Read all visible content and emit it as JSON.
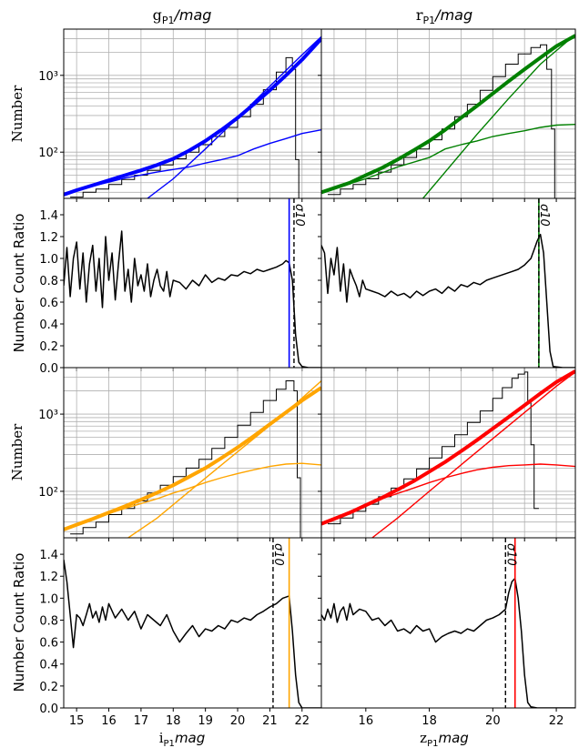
{
  "figure": {
    "col_titles": [
      {
        "prefix": "g",
        "sub": "P1",
        "unit": "/mag"
      },
      {
        "prefix": "r",
        "sub": "P1",
        "unit": "/mag"
      }
    ],
    "x_labels": [
      {
        "prefix": "i",
        "sub": "P1",
        "unit": "mag"
      },
      {
        "prefix": "z",
        "sub": "P1",
        "unit": "mag"
      }
    ],
    "ylabel_counts": "Number",
    "ylabel_ratio": "Number Count Ratio",
    "sigma_label": "σ10"
  },
  "chart_data": [
    {
      "id": "g-counts",
      "type": "line",
      "scale_y": "log",
      "color": "#0000ff",
      "xlim": [
        14.6,
        22.6
      ],
      "ylim": [
        25,
        4000
      ],
      "yticks": [
        {
          "v": 100,
          "label": "10²"
        },
        {
          "v": 1000,
          "label": "10³"
        }
      ],
      "grid": true,
      "series": [
        {
          "role": "steps",
          "x": [
            14.8,
            15.2,
            15.6,
            16,
            16.4,
            16.8,
            17.2,
            17.6,
            18,
            18.4,
            18.8,
            19.2,
            19.6,
            20,
            20.4,
            20.8,
            21.2,
            21.5,
            21.7,
            21.8,
            21.9
          ],
          "y": [
            26,
            30,
            33,
            38,
            44,
            50,
            58,
            68,
            82,
            100,
            125,
            160,
            210,
            290,
            420,
            650,
            1100,
            1700,
            1200,
            80,
            25
          ]
        },
        {
          "role": "model",
          "x": [
            14.6,
            15,
            15.5,
            16,
            16.5,
            17,
            17.5,
            18,
            18.5,
            19,
            19.5,
            20,
            20.5,
            21,
            21.5,
            22,
            22.6
          ],
          "y": [
            28,
            32,
            37,
            43,
            50,
            58,
            68,
            82,
            105,
            140,
            195,
            280,
            420,
            640,
            1000,
            1600,
            3000
          ]
        },
        {
          "role": "bright",
          "x": [
            17.2,
            18,
            19,
            20,
            21,
            22,
            22.6
          ],
          "y": [
            25,
            45,
            110,
            280,
            720,
            1850,
            3200
          ]
        },
        {
          "role": "flat",
          "x": [
            14.6,
            15.5,
            16.5,
            17.5,
            18.5,
            19,
            19.5,
            20,
            20.5,
            21,
            21.5,
            22,
            22.6
          ],
          "y": [
            28,
            36,
            46,
            55,
            64,
            72,
            80,
            90,
            110,
            130,
            150,
            175,
            195
          ]
        }
      ]
    },
    {
      "id": "r-counts",
      "type": "line",
      "scale_y": "log",
      "color": "#008000",
      "xlim": [
        14.6,
        22.6
      ],
      "ylim": [
        25,
        4000
      ],
      "yticks": [
        {
          "v": 100,
          "label": "10²"
        },
        {
          "v": 1000,
          "label": "10³"
        }
      ],
      "grid": true,
      "series": [
        {
          "role": "steps",
          "x": [
            14.8,
            15.2,
            15.6,
            16,
            16.4,
            16.8,
            17.2,
            17.6,
            18,
            18.4,
            18.8,
            19.2,
            19.6,
            20,
            20.4,
            20.8,
            21.2,
            21.5,
            21.7,
            21.85,
            21.95
          ],
          "y": [
            28,
            33,
            38,
            45,
            55,
            68,
            85,
            110,
            145,
            200,
            290,
            420,
            640,
            960,
            1400,
            1900,
            2300,
            2500,
            1200,
            200,
            25
          ]
        },
        {
          "role": "model",
          "x": [
            14.6,
            15,
            15.5,
            16,
            16.5,
            17,
            17.5,
            18,
            18.5,
            19,
            19.5,
            20,
            20.5,
            21,
            21.5,
            22,
            22.6
          ],
          "y": [
            30,
            34,
            40,
            50,
            62,
            80,
            105,
            140,
            195,
            280,
            400,
            580,
            840,
            1200,
            1700,
            2400,
            3300
          ]
        },
        {
          "role": "bright",
          "x": [
            17.8,
            18.5,
            19.5,
            20.5,
            21.5,
            22.6
          ],
          "y": [
            25,
            55,
            170,
            500,
            1400,
            3400
          ]
        },
        {
          "role": "flat",
          "x": [
            14.6,
            16,
            17,
            18,
            18.5,
            19,
            19.5,
            20,
            20.5,
            21,
            21.5,
            22,
            22.6
          ],
          "y": [
            30,
            45,
            64,
            85,
            110,
            125,
            140,
            160,
            175,
            190,
            210,
            225,
            230
          ]
        }
      ]
    },
    {
      "id": "g-ratio",
      "type": "line",
      "color": "#000000",
      "cut_color": "#0000ff",
      "xlim": [
        14.6,
        22.6
      ],
      "ylim": [
        0,
        1.55
      ],
      "yticks": [
        0.0,
        0.2,
        0.4,
        0.6,
        0.8,
        1.0,
        1.2,
        1.4
      ],
      "sigma10": 21.75,
      "cut": 21.6,
      "x": [
        14.6,
        14.7,
        14.8,
        14.9,
        15.0,
        15.1,
        15.2,
        15.3,
        15.4,
        15.5,
        15.6,
        15.7,
        15.8,
        15.9,
        16.0,
        16.1,
        16.2,
        16.3,
        16.4,
        16.5,
        16.6,
        16.7,
        16.8,
        16.9,
        17.0,
        17.1,
        17.2,
        17.3,
        17.4,
        17.5,
        17.6,
        17.7,
        17.8,
        17.9,
        18.0,
        18.2,
        18.4,
        18.6,
        18.8,
        19.0,
        19.2,
        19.4,
        19.6,
        19.8,
        20.0,
        20.2,
        20.4,
        20.6,
        20.8,
        21.0,
        21.2,
        21.4,
        21.5,
        21.6,
        21.7,
        21.8,
        21.9,
        22.0,
        22.2,
        22.6
      ],
      "y": [
        0.75,
        1.1,
        0.65,
        1.0,
        1.15,
        0.72,
        1.05,
        0.6,
        0.95,
        1.12,
        0.7,
        1.0,
        0.55,
        1.2,
        0.8,
        1.05,
        0.62,
        0.95,
        1.25,
        0.7,
        0.9,
        0.6,
        1.0,
        0.75,
        0.85,
        0.7,
        0.95,
        0.65,
        0.8,
        0.9,
        0.75,
        0.7,
        0.88,
        0.65,
        0.8,
        0.78,
        0.72,
        0.8,
        0.75,
        0.85,
        0.78,
        0.82,
        0.8,
        0.85,
        0.84,
        0.88,
        0.86,
        0.9,
        0.88,
        0.9,
        0.92,
        0.95,
        0.98,
        0.96,
        0.8,
        0.3,
        0.05,
        0.01,
        0.0,
        0.0
      ]
    },
    {
      "id": "r-ratio",
      "type": "line",
      "color": "#000000",
      "cut_color": "#008000",
      "xlim": [
        14.6,
        22.6
      ],
      "ylim": [
        0,
        1.55
      ],
      "yticks": [
        0.0,
        0.2,
        0.4,
        0.6,
        0.8,
        1.0,
        1.2,
        1.4
      ],
      "sigma10": 21.45,
      "cut": 21.45,
      "x": [
        14.6,
        14.7,
        14.8,
        14.9,
        15.0,
        15.1,
        15.2,
        15.3,
        15.4,
        15.5,
        15.6,
        15.7,
        15.8,
        15.9,
        16.0,
        16.2,
        16.4,
        16.6,
        16.8,
        17.0,
        17.2,
        17.4,
        17.6,
        17.8,
        18.0,
        18.2,
        18.4,
        18.6,
        18.8,
        19.0,
        19.2,
        19.4,
        19.6,
        19.8,
        20.0,
        20.2,
        20.4,
        20.6,
        20.8,
        21.0,
        21.2,
        21.3,
        21.4,
        21.5,
        21.6,
        21.7,
        21.8,
        21.9,
        22.2,
        22.6
      ],
      "y": [
        1.12,
        1.05,
        0.68,
        1.0,
        0.85,
        1.1,
        0.7,
        0.95,
        0.6,
        0.9,
        0.82,
        0.75,
        0.65,
        0.8,
        0.72,
        0.7,
        0.68,
        0.65,
        0.7,
        0.66,
        0.68,
        0.64,
        0.7,
        0.66,
        0.7,
        0.72,
        0.68,
        0.74,
        0.7,
        0.76,
        0.74,
        0.78,
        0.76,
        0.8,
        0.82,
        0.84,
        0.86,
        0.88,
        0.9,
        0.94,
        1.0,
        1.08,
        1.16,
        1.22,
        1.05,
        0.6,
        0.15,
        0.01,
        0.0,
        0.0
      ]
    },
    {
      "id": "i-counts",
      "type": "line",
      "scale_y": "log",
      "color": "#ffa500",
      "xlim": [
        14.6,
        22.6
      ],
      "ylim": [
        25,
        4000
      ],
      "yticks": [
        {
          "v": 100,
          "label": "10²"
        },
        {
          "v": 1000,
          "label": "10³"
        }
      ],
      "grid": true,
      "series": [
        {
          "role": "steps",
          "x": [
            14.8,
            15.2,
            15.6,
            16,
            16.4,
            16.8,
            17.2,
            17.6,
            18,
            18.4,
            18.8,
            19.2,
            19.6,
            20,
            20.4,
            20.8,
            21.2,
            21.5,
            21.75,
            21.85,
            21.95
          ],
          "y": [
            28,
            34,
            40,
            50,
            60,
            75,
            95,
            120,
            155,
            200,
            260,
            360,
            500,
            720,
            1050,
            1500,
            2100,
            2700,
            2000,
            150,
            25
          ]
        },
        {
          "role": "model",
          "x": [
            14.6,
            15,
            15.5,
            16,
            16.5,
            17,
            17.5,
            18,
            18.5,
            19,
            19.5,
            20,
            20.5,
            21,
            21.5,
            22,
            22.6
          ],
          "y": [
            32,
            37,
            44,
            53,
            64,
            78,
            96,
            120,
            155,
            200,
            270,
            370,
            520,
            740,
            1050,
            1500,
            2200
          ]
        },
        {
          "role": "bright",
          "x": [
            16.6,
            17.5,
            18.5,
            19.5,
            20.5,
            21.5,
            22.6
          ],
          "y": [
            25,
            45,
            100,
            220,
            480,
            1050,
            2700
          ]
        },
        {
          "role": "flat",
          "x": [
            14.6,
            15.5,
            16.5,
            17.5,
            18,
            18.5,
            19,
            19.5,
            20,
            20.5,
            21,
            21.5,
            22,
            22.6
          ],
          "y": [
            32,
            44,
            60,
            80,
            95,
            110,
            130,
            150,
            170,
            190,
            210,
            225,
            230,
            220
          ]
        }
      ]
    },
    {
      "id": "z-counts",
      "type": "line",
      "scale_y": "log",
      "color": "#ff0000",
      "xlim": [
        14.6,
        22.6
      ],
      "ylim": [
        25,
        4000
      ],
      "yticks": [
        {
          "v": 100,
          "label": "10²"
        },
        {
          "v": 1000,
          "label": "10³"
        }
      ],
      "grid": true,
      "series": [
        {
          "role": "steps",
          "x": [
            14.8,
            15.2,
            15.6,
            16,
            16.4,
            16.8,
            17.2,
            17.6,
            18,
            18.4,
            18.8,
            19.2,
            19.6,
            20,
            20.3,
            20.6,
            20.8,
            21.0,
            21.1,
            21.2,
            21.3
          ],
          "y": [
            38,
            45,
            55,
            68,
            85,
            110,
            145,
            195,
            270,
            380,
            540,
            780,
            1100,
            1600,
            2200,
            2900,
            3300,
            3500,
            1400,
            400,
            60
          ]
        },
        {
          "role": "model",
          "x": [
            14.6,
            15,
            15.5,
            16,
            16.5,
            17,
            17.5,
            18,
            18.5,
            19,
            19.5,
            20,
            20.5,
            21,
            21.5,
            22,
            22.6
          ],
          "y": [
            38,
            44,
            53,
            66,
            82,
            105,
            135,
            180,
            240,
            330,
            460,
            650,
            920,
            1300,
            1850,
            2600,
            3600
          ]
        },
        {
          "role": "bright",
          "x": [
            16.2,
            17,
            18,
            19,
            20,
            21,
            22,
            22.6
          ],
          "y": [
            25,
            45,
            100,
            220,
            480,
            1050,
            2300,
            3500
          ]
        },
        {
          "role": "flat",
          "x": [
            14.6,
            15.5,
            16.5,
            17.5,
            18,
            18.5,
            19,
            19.5,
            20,
            20.5,
            21,
            21.5,
            22,
            22.6
          ],
          "y": [
            38,
            55,
            80,
            110,
            130,
            150,
            170,
            190,
            205,
            215,
            220,
            225,
            220,
            210
          ]
        }
      ]
    },
    {
      "id": "i-ratio",
      "type": "line",
      "color": "#000000",
      "cut_color": "#ffa500",
      "xlim": [
        14.6,
        22.6
      ],
      "ylim": [
        0,
        1.55
      ],
      "yticks": [
        0.0,
        0.2,
        0.4,
        0.6,
        0.8,
        1.0,
        1.2,
        1.4
      ],
      "xticks": [
        15,
        16,
        17,
        18,
        19,
        20,
        21,
        22
      ],
      "sigma10": 21.1,
      "cut": 21.6,
      "x": [
        14.6,
        14.7,
        14.8,
        14.9,
        15.0,
        15.1,
        15.2,
        15.3,
        15.4,
        15.5,
        15.6,
        15.7,
        15.8,
        15.9,
        16.0,
        16.2,
        16.4,
        16.6,
        16.8,
        17.0,
        17.2,
        17.4,
        17.6,
        17.8,
        18.0,
        18.2,
        18.4,
        18.6,
        18.8,
        19.0,
        19.2,
        19.4,
        19.6,
        19.8,
        20.0,
        20.2,
        20.4,
        20.6,
        20.8,
        21.0,
        21.2,
        21.4,
        21.6,
        21.7,
        21.8,
        21.9,
        22.0,
        22.2,
        22.6
      ],
      "y": [
        1.35,
        1.15,
        0.85,
        0.55,
        0.85,
        0.82,
        0.75,
        0.85,
        0.95,
        0.82,
        0.88,
        0.78,
        0.92,
        0.8,
        0.95,
        0.82,
        0.9,
        0.8,
        0.88,
        0.72,
        0.85,
        0.8,
        0.75,
        0.85,
        0.7,
        0.6,
        0.68,
        0.75,
        0.65,
        0.72,
        0.7,
        0.75,
        0.72,
        0.8,
        0.78,
        0.82,
        0.8,
        0.85,
        0.88,
        0.92,
        0.95,
        1.0,
        1.02,
        0.7,
        0.3,
        0.05,
        0.0,
        0.0,
        0.0
      ]
    },
    {
      "id": "z-ratio",
      "type": "line",
      "color": "#000000",
      "cut_color": "#ff0000",
      "xlim": [
        14.6,
        22.6
      ],
      "ylim": [
        0,
        1.55
      ],
      "yticks": [
        0.0,
        0.2,
        0.4,
        0.6,
        0.8,
        1.0,
        1.2,
        1.4
      ],
      "xticks": [
        16,
        18,
        20,
        22
      ],
      "sigma10": 20.4,
      "cut": 20.7,
      "x": [
        14.6,
        14.7,
        14.8,
        14.9,
        15.0,
        15.1,
        15.2,
        15.3,
        15.4,
        15.5,
        15.6,
        15.8,
        16.0,
        16.2,
        16.4,
        16.6,
        16.8,
        17.0,
        17.2,
        17.4,
        17.6,
        17.8,
        18.0,
        18.2,
        18.4,
        18.6,
        18.8,
        19.0,
        19.2,
        19.4,
        19.6,
        19.8,
        20.0,
        20.2,
        20.4,
        20.5,
        20.6,
        20.7,
        20.8,
        20.9,
        21.0,
        21.1,
        21.2,
        21.4,
        22.6
      ],
      "y": [
        0.85,
        0.8,
        0.9,
        0.82,
        0.95,
        0.78,
        0.88,
        0.92,
        0.8,
        0.95,
        0.85,
        0.9,
        0.88,
        0.8,
        0.82,
        0.75,
        0.8,
        0.7,
        0.72,
        0.68,
        0.75,
        0.7,
        0.72,
        0.6,
        0.65,
        0.68,
        0.7,
        0.68,
        0.72,
        0.7,
        0.75,
        0.8,
        0.82,
        0.85,
        0.9,
        1.05,
        1.15,
        1.18,
        1.0,
        0.7,
        0.3,
        0.05,
        0.01,
        0.0,
        0.0
      ]
    }
  ]
}
